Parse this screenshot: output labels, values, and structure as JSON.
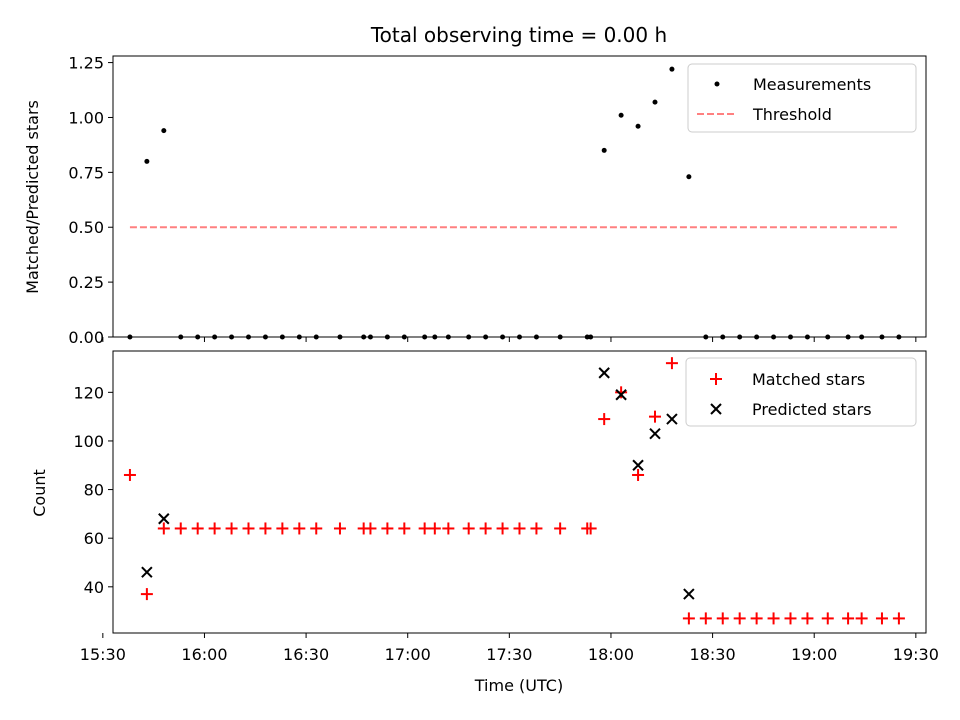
{
  "chart_data": [
    {
      "type": "scatter",
      "title": "Total observing time = 0.00 h",
      "xlabel": "",
      "ylabel": "Matched/Predicted stars",
      "xlim": [
        "15:33",
        "19:33"
      ],
      "ylim": [
        0,
        1.28
      ],
      "yticks": [
        "0.00",
        "0.25",
        "0.50",
        "0.75",
        "1.00",
        "1.25"
      ],
      "legend_position": "top-right",
      "legend": {
        "measurements": "Measurements",
        "threshold": "Threshold"
      },
      "colors": {
        "measurements": "#000000",
        "threshold": "#ff8080"
      },
      "series": [
        {
          "name": "Measurements",
          "points": [
            [
              "15:38",
              0
            ],
            [
              "15:43",
              0.8
            ],
            [
              "15:48",
              0.94
            ],
            [
              "15:53",
              0
            ],
            [
              "15:58",
              0
            ],
            [
              "16:03",
              0
            ],
            [
              "16:08",
              0
            ],
            [
              "16:13",
              0
            ],
            [
              "16:18",
              0
            ],
            [
              "16:23",
              0
            ],
            [
              "16:28",
              0
            ],
            [
              "16:33",
              0
            ],
            [
              "16:40",
              0
            ],
            [
              "16:47",
              0
            ],
            [
              "16:49",
              0
            ],
            [
              "16:54",
              0
            ],
            [
              "16:59",
              0
            ],
            [
              "17:05",
              0
            ],
            [
              "17:08",
              0
            ],
            [
              "17:12",
              0
            ],
            [
              "17:18",
              0
            ],
            [
              "17:23",
              0
            ],
            [
              "17:28",
              0
            ],
            [
              "17:33",
              0
            ],
            [
              "17:38",
              0
            ],
            [
              "17:45",
              0
            ],
            [
              "17:53",
              0
            ],
            [
              "17:54",
              0
            ],
            [
              "17:58",
              0.85
            ],
            [
              "18:03",
              1.01
            ],
            [
              "18:08",
              0.96
            ],
            [
              "18:13",
              1.07
            ],
            [
              "18:18",
              1.22
            ],
            [
              "18:23",
              0.73
            ],
            [
              "18:28",
              0
            ],
            [
              "18:33",
              0
            ],
            [
              "18:38",
              0
            ],
            [
              "18:43",
              0
            ],
            [
              "18:48",
              0
            ],
            [
              "18:53",
              0
            ],
            [
              "18:58",
              0
            ],
            [
              "19:04",
              0
            ],
            [
              "19:10",
              0
            ],
            [
              "19:14",
              0
            ],
            [
              "19:20",
              0
            ],
            [
              "19:25",
              0
            ]
          ]
        },
        {
          "name": "Threshold",
          "style": "dashed-line",
          "points": [
            [
              "15:38",
              0.5
            ],
            [
              "19:25",
              0.5
            ]
          ]
        }
      ]
    },
    {
      "type": "scatter",
      "title": "",
      "xlabel": "Time (UTC)",
      "ylabel": "Count",
      "xlim": [
        "15:33",
        "19:33"
      ],
      "ylim": [
        21,
        137
      ],
      "yticks": [
        "40",
        "60",
        "80",
        "100",
        "120"
      ],
      "xticks": [
        "15:30",
        "16:00",
        "16:30",
        "17:00",
        "17:30",
        "18:00",
        "18:30",
        "19:00",
        "19:30"
      ],
      "legend_position": "top-right",
      "legend": {
        "matched": "Matched stars",
        "predicted": "Predicted stars"
      },
      "colors": {
        "matched": "#ff0000",
        "predicted": "#000000"
      },
      "series": [
        {
          "name": "Matched stars",
          "marker": "+",
          "points": [
            [
              "15:38",
              86
            ],
            [
              "15:43",
              37
            ],
            [
              "15:48",
              64
            ],
            [
              "15:53",
              64
            ],
            [
              "15:58",
              64
            ],
            [
              "16:03",
              64
            ],
            [
              "16:08",
              64
            ],
            [
              "16:13",
              64
            ],
            [
              "16:18",
              64
            ],
            [
              "16:23",
              64
            ],
            [
              "16:28",
              64
            ],
            [
              "16:33",
              64
            ],
            [
              "16:40",
              64
            ],
            [
              "16:47",
              64
            ],
            [
              "16:49",
              64
            ],
            [
              "16:54",
              64
            ],
            [
              "16:59",
              64
            ],
            [
              "17:05",
              64
            ],
            [
              "17:08",
              64
            ],
            [
              "17:12",
              64
            ],
            [
              "17:18",
              64
            ],
            [
              "17:23",
              64
            ],
            [
              "17:28",
              64
            ],
            [
              "17:33",
              64
            ],
            [
              "17:38",
              64
            ],
            [
              "17:45",
              64
            ],
            [
              "17:53",
              64
            ],
            [
              "17:54",
              64
            ],
            [
              "17:58",
              109
            ],
            [
              "18:03",
              120
            ],
            [
              "18:08",
              86
            ],
            [
              "18:13",
              110
            ],
            [
              "18:18",
              132
            ],
            [
              "18:23",
              27
            ],
            [
              "18:28",
              27
            ],
            [
              "18:33",
              27
            ],
            [
              "18:38",
              27
            ],
            [
              "18:43",
              27
            ],
            [
              "18:48",
              27
            ],
            [
              "18:53",
              27
            ],
            [
              "18:58",
              27
            ],
            [
              "19:04",
              27
            ],
            [
              "19:10",
              27
            ],
            [
              "19:14",
              27
            ],
            [
              "19:20",
              27
            ],
            [
              "19:25",
              27
            ]
          ]
        },
        {
          "name": "Predicted stars",
          "marker": "x",
          "points": [
            [
              "15:43",
              46
            ],
            [
              "15:48",
              68
            ],
            [
              "17:58",
              128
            ],
            [
              "18:03",
              119
            ],
            [
              "18:08",
              90
            ],
            [
              "18:13",
              103
            ],
            [
              "18:18",
              109
            ],
            [
              "18:23",
              37
            ]
          ]
        }
      ]
    }
  ]
}
